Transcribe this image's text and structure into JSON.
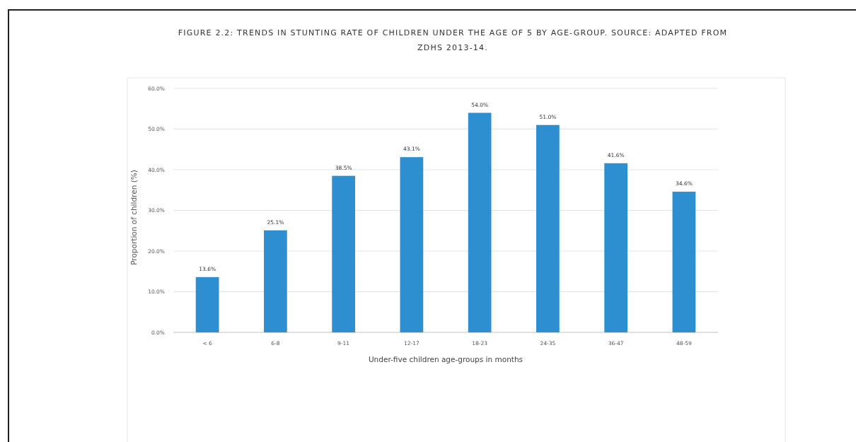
{
  "chart_data": {
    "type": "bar",
    "title": "FIGURE 2.2: TRENDS IN STUNTING RATE OF CHILDREN UNDER THE AGE OF 5 BY AGE-GROUP. SOURCE: ADAPTED FROM ZDHS 2013-14.",
    "xlabel": "Under-five children age-groups in months",
    "ylabel": "Proportion of children (%)",
    "categories": [
      "< 6",
      "6-8",
      "9-11",
      "12-17",
      "18-23",
      "24-35",
      "36-47",
      "48-59"
    ],
    "values": [
      13.6,
      25.1,
      38.5,
      43.1,
      54.0,
      51.0,
      41.6,
      34.6
    ],
    "value_labels": [
      "13.6%",
      "25.1%",
      "38.5%",
      "43.1%",
      "54.0%",
      "51.0%",
      "41.6%",
      "34.6%"
    ],
    "color": "#2e8fd0",
    "ylim": [
      0,
      60
    ],
    "yticks": [
      {
        "value": 0,
        "label": "0.0%"
      },
      {
        "value": 10,
        "label": "10.0%"
      },
      {
        "value": 20,
        "label": "20.0%"
      },
      {
        "value": 30,
        "label": "30.0%"
      },
      {
        "value": 40,
        "label": "40.0%"
      },
      {
        "value": 50,
        "label": "50.0%"
      },
      {
        "value": 60,
        "label": "60.0%"
      }
    ],
    "grid": "y"
  }
}
